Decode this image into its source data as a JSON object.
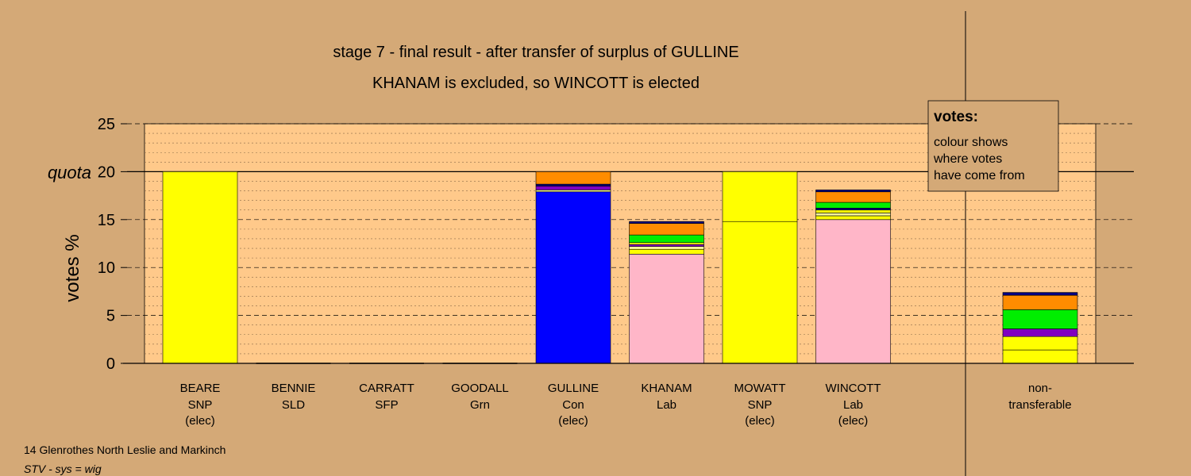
{
  "chart_data": {
    "type": "bar",
    "stacked": true,
    "title": "stage 7 - final result - after transfer of surplus of GULLINE",
    "subtitle": "KHANAM is excluded, so WINCOTT is elected",
    "ylabel": "votes %",
    "ylim": [
      0,
      25
    ],
    "yticks": [
      0,
      5,
      10,
      15,
      20,
      25
    ],
    "quota": 20,
    "quota_label": "quota",
    "grid": true,
    "legend": {
      "title": "votes:",
      "lines": [
        "colour shows",
        "where votes",
        "have come from"
      ],
      "placement": "top-right"
    },
    "colors": {
      "snp": "#ffff00",
      "con": "#0000ff",
      "lab": "#ffb6c8",
      "sld": "#ff8c00",
      "sfp": "#8000c0",
      "grn": "#00ee00",
      "navy": "#000080",
      "pale": "#f5f59a",
      "background": "#d4a977",
      "plot": "#ffc98a"
    },
    "candidates": [
      {
        "name": "BEARE",
        "party": "SNP",
        "status": "(elec)",
        "segments": [
          {
            "source": "snp",
            "value": 20.0
          }
        ]
      },
      {
        "name": "BENNIE",
        "party": "SLD",
        "status": "",
        "segments": []
      },
      {
        "name": "CARRATT",
        "party": "SFP",
        "status": "",
        "segments": []
      },
      {
        "name": "GOODALL",
        "party": "Grn",
        "status": "",
        "segments": []
      },
      {
        "name": "GULLINE",
        "party": "Con",
        "status": "(elec)",
        "segments": [
          {
            "source": "con",
            "value": 17.9
          },
          {
            "source": "pale",
            "value": 0.2
          },
          {
            "source": "sfp",
            "value": 0.4
          },
          {
            "source": "navy",
            "value": 0.2
          },
          {
            "source": "sld",
            "value": 1.3
          }
        ]
      },
      {
        "name": "KHANAM",
        "party": "Lab",
        "status": "",
        "segments": [
          {
            "source": "lab",
            "value": 11.4
          },
          {
            "source": "snp",
            "value": 0.5
          },
          {
            "source": "pale",
            "value": 0.3
          },
          {
            "source": "sfp",
            "value": 0.2
          },
          {
            "source": "snp",
            "value": 0.2
          },
          {
            "source": "grn",
            "value": 0.8
          },
          {
            "source": "sld",
            "value": 1.2
          },
          {
            "source": "navy",
            "value": 0.2
          }
        ]
      },
      {
        "name": "MOWATT",
        "party": "SNP",
        "status": "(elec)",
        "segments": [
          {
            "source": "snp",
            "value": 14.8
          },
          {
            "source": "snp",
            "value": 5.2
          }
        ]
      },
      {
        "name": "WINCOTT",
        "party": "Lab",
        "status": "(elec)",
        "segments": [
          {
            "source": "lab",
            "value": 15.0
          },
          {
            "source": "snp",
            "value": 0.4
          },
          {
            "source": "pale",
            "value": 0.3
          },
          {
            "source": "snp",
            "value": 0.3
          },
          {
            "source": "navy",
            "value": 0.2
          },
          {
            "source": "grn",
            "value": 0.6
          },
          {
            "source": "sld",
            "value": 1.1
          },
          {
            "source": "navy",
            "value": 0.2
          }
        ]
      }
    ],
    "nontransferable": {
      "label_line1": "non-",
      "label_line2": "transferable",
      "segments": [
        {
          "source": "snp",
          "value": 1.4
        },
        {
          "source": "snp",
          "value": 1.4
        },
        {
          "source": "sfp",
          "value": 0.8
        },
        {
          "source": "grn",
          "value": 2.0
        },
        {
          "source": "sld",
          "value": 1.5
        },
        {
          "source": "navy",
          "value": 0.3
        }
      ]
    }
  },
  "footer": {
    "ward": "14 Glenrothes North Leslie and Markinch",
    "system": "STV - sys = wig"
  }
}
